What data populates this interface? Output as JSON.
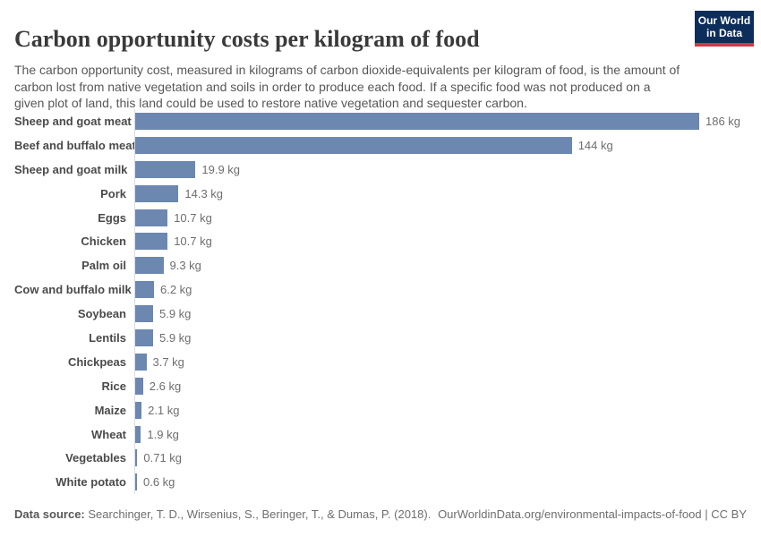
{
  "header": {
    "title": "Carbon opportunity costs per kilogram of food",
    "subtitle": "The carbon opportunity cost, measured in kilograms of carbon dioxide-equivalents per kilogram of food, is the amount of carbon lost from native vegetation and soils in order to produce each food. If a specific food was not produced on a given plot of land, this land could be used to restore native vegetation and sequester carbon.",
    "logo": {
      "line1": "Our World",
      "line2": "in Data"
    }
  },
  "chart_data": {
    "type": "bar",
    "orientation": "horizontal",
    "title": "Carbon opportunity costs per kilogram of food",
    "categories": [
      "Sheep and goat meat",
      "Beef and buffalo meat",
      "Sheep and goat milk",
      "Pork",
      "Eggs",
      "Chicken",
      "Palm oil",
      "Cow and buffalo milk",
      "Soybean",
      "Lentils",
      "Chickpeas",
      "Rice",
      "Maize",
      "Wheat",
      "Vegetables",
      "White potato"
    ],
    "values": [
      186,
      144,
      19.9,
      14.3,
      10.7,
      10.7,
      9.3,
      6.2,
      5.9,
      5.9,
      3.7,
      2.6,
      2.1,
      1.9,
      0.71,
      0.6
    ],
    "value_labels": [
      "186 kg",
      "144 kg",
      "19.9 kg",
      "14.3 kg",
      "10.7 kg",
      "10.7 kg",
      "9.3 kg",
      "6.2 kg",
      "5.9 kg",
      "5.9 kg",
      "3.7 kg",
      "2.6 kg",
      "2.1 kg",
      "1.9 kg",
      "0.71 kg",
      "0.6 kg"
    ],
    "value_suffix": " kg",
    "xlim": [
      0,
      186
    ],
    "grid": false,
    "legend": "none",
    "bar_color": "#6c87b0",
    "axis_line_color": "#dcdcdc"
  },
  "colors": {
    "bar": "#6c87b0",
    "logo_navy": "#0d2e5a",
    "logo_red": "#cf3a44",
    "title_text": "#3a3a3a",
    "subtitle_text": "#575757",
    "value_text": "#6e6e6e"
  },
  "footer": {
    "data_source_label": "Data source:",
    "data_source": "Searchinger, T. D., Wirsenius, S., Beringer, T., & Dumas, P. (2018).",
    "url": "OurWorldinData.org/environmental-impacts-of-food",
    "separator": "|",
    "license": "CC BY"
  }
}
